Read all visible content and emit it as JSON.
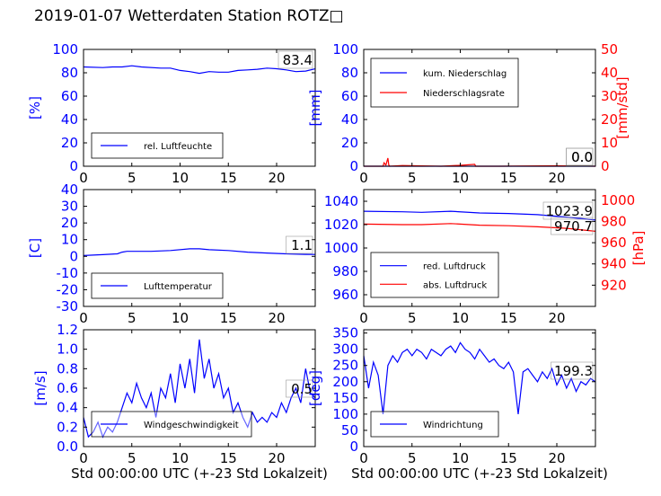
{
  "header": {
    "title": "2019-01-07 Wetterdaten Station ROTZ□"
  },
  "colors": {
    "blue": "#0000ff",
    "red": "#ff0000",
    "black": "#000000"
  },
  "chart_data": [
    {
      "id": "humidity",
      "type": "line",
      "ylabel": "[%]",
      "ylim": [
        0,
        100
      ],
      "yticks": [
        0,
        20,
        40,
        60,
        80,
        100
      ],
      "xlim": [
        0,
        24
      ],
      "xticks": [
        0,
        5,
        10,
        15,
        20
      ],
      "legend_position": "lower-left",
      "last_value": "83.4",
      "series": [
        {
          "name": "rel. Luftfeuchte",
          "color": "#0000ff",
          "axis": "left",
          "x": [
            0,
            2,
            3,
            4,
            5,
            6,
            8,
            9,
            10,
            11,
            12,
            13,
            14,
            15,
            16,
            17,
            18,
            19,
            20,
            21,
            22,
            23,
            24
          ],
          "y": [
            85,
            84.5,
            85,
            85,
            86,
            85,
            84,
            84,
            82,
            81,
            79.5,
            81,
            80.5,
            80.5,
            82,
            82.5,
            83,
            84,
            83.5,
            82.5,
            81,
            81.5,
            83.4
          ]
        }
      ]
    },
    {
      "id": "precip",
      "type": "line",
      "ylabel": "[mm]",
      "ylim": [
        0,
        100
      ],
      "yticks": [
        0,
        20,
        40,
        60,
        80,
        100
      ],
      "y2label": "[mm/std]",
      "y2lim": [
        0,
        50
      ],
      "y2ticks": [
        0,
        10,
        20,
        30,
        40,
        50
      ],
      "xlim": [
        0,
        24
      ],
      "xticks": [
        0,
        5,
        10,
        15,
        20
      ],
      "legend_position": "upper-left",
      "last_value": "0.0",
      "last_value2": "0.0",
      "series": [
        {
          "name": "kum. Niederschlag",
          "color": "#0000ff",
          "axis": "left",
          "x": [
            0,
            24
          ],
          "y": [
            0,
            0
          ]
        },
        {
          "name": "Niederschlagsrate",
          "color": "#ff0000",
          "axis": "right",
          "x": [
            0,
            2.0,
            2.1,
            2.3,
            2.5,
            2.6,
            2.7,
            4,
            8,
            10,
            11.5,
            11.6,
            14,
            20,
            24
          ],
          "y": [
            0,
            0,
            1.5,
            0.5,
            3.5,
            0.5,
            0,
            0.3,
            0,
            0.4,
            0.8,
            0,
            0,
            0.2,
            0
          ]
        }
      ]
    },
    {
      "id": "temperature",
      "type": "line",
      "ylabel": "[C]",
      "ylim": [
        -30,
        40
      ],
      "yticks": [
        -30,
        -20,
        -10,
        0,
        10,
        20,
        30,
        40
      ],
      "xlim": [
        0,
        24
      ],
      "xticks": [
        0,
        5,
        10,
        15,
        20
      ],
      "legend_position": "lower-left",
      "last_value": "1.1",
      "series": [
        {
          "name": "Lufttemperatur",
          "color": "#0000ff",
          "axis": "left",
          "x": [
            0,
            2,
            3.5,
            4,
            4.5,
            7,
            9,
            11,
            12,
            13,
            15,
            17,
            19,
            21,
            23,
            24
          ],
          "y": [
            0.5,
            1,
            1.5,
            2.5,
            3,
            3,
            3.5,
            4.5,
            4.5,
            4,
            3.5,
            2.5,
            2,
            1.5,
            1.2,
            1.1
          ]
        }
      ]
    },
    {
      "id": "pressure",
      "type": "line",
      "ylim": [
        950,
        1050
      ],
      "yticks": [
        960,
        980,
        1000,
        1020,
        1040
      ],
      "y2label": "[hPa]",
      "y2lim": [
        900,
        1010
      ],
      "y2ticks": [
        920,
        940,
        960,
        980,
        1000
      ],
      "xlim": [
        0,
        24
      ],
      "xticks": [
        0,
        5,
        10,
        15,
        20
      ],
      "legend_position": "lower-left",
      "last_value": "1023.9",
      "last_value2": "970.7",
      "series": [
        {
          "name": "red. Luftdruck",
          "color": "#0000ff",
          "axis": "left",
          "x": [
            0,
            4,
            6,
            9,
            12,
            15,
            18,
            21,
            24
          ],
          "y": [
            1031.5,
            1031,
            1030.5,
            1031.5,
            1030,
            1029.5,
            1028.5,
            1026.5,
            1023.9
          ]
        },
        {
          "name": "abs. Luftdruck",
          "color": "#ff0000",
          "axis": "right",
          "x": [
            0,
            4,
            6,
            9,
            12,
            15,
            18,
            21,
            24
          ],
          "y": [
            977.5,
            977,
            977,
            978,
            976.5,
            976,
            975,
            973.5,
            970.7
          ]
        }
      ]
    },
    {
      "id": "wind_speed",
      "type": "line",
      "ylabel": "[m/s]",
      "ylim": [
        0,
        1.2
      ],
      "yticks": [
        0.0,
        0.2,
        0.4,
        0.6,
        0.8,
        1.0,
        1.2
      ],
      "xlabel": "Std 00:00:00 UTC (+-23 Std Lokalzeit)",
      "xlim": [
        0,
        24
      ],
      "xticks": [
        0,
        5,
        10,
        15,
        20
      ],
      "legend_position": "lower-left",
      "last_value": "0.5",
      "series": [
        {
          "name": "Windgeschwindigkeit",
          "color": "#0000ff",
          "axis": "left",
          "x": [
            0,
            0.5,
            1,
            1.5,
            2,
            2.5,
            3,
            3.5,
            4,
            4.5,
            5,
            5.5,
            6,
            6.5,
            7,
            7.5,
            8,
            8.5,
            9,
            9.5,
            10,
            10.5,
            11,
            11.5,
            12,
            12.5,
            13,
            13.5,
            14,
            14.5,
            15,
            15.5,
            16,
            16.5,
            17,
            17.5,
            18,
            18.5,
            19,
            19.5,
            20,
            20.5,
            21,
            21.5,
            22,
            22.5,
            23,
            23.5,
            24
          ],
          "y": [
            0.3,
            0.1,
            0.15,
            0.25,
            0.1,
            0.2,
            0.15,
            0.25,
            0.4,
            0.55,
            0.45,
            0.65,
            0.5,
            0.4,
            0.55,
            0.3,
            0.6,
            0.5,
            0.75,
            0.45,
            0.85,
            0.6,
            0.9,
            0.55,
            1.1,
            0.7,
            0.9,
            0.6,
            0.75,
            0.5,
            0.6,
            0.35,
            0.45,
            0.3,
            0.2,
            0.35,
            0.25,
            0.3,
            0.25,
            0.35,
            0.3,
            0.45,
            0.35,
            0.5,
            0.6,
            0.45,
            0.8,
            0.55,
            0.5
          ]
        }
      ]
    },
    {
      "id": "wind_dir",
      "type": "line",
      "ylabel": "[deg]",
      "ylim": [
        0,
        360
      ],
      "yticks": [
        0,
        50,
        100,
        150,
        200,
        250,
        300,
        350
      ],
      "xlabel": "Std 00:00:00 UTC (+-23 Std Lokalzeit)",
      "xlim": [
        0,
        24
      ],
      "xticks": [
        0,
        5,
        10,
        15,
        20
      ],
      "legend_position": "lower-left",
      "last_value": "199.3",
      "series": [
        {
          "name": "Windrichtung",
          "color": "#0000ff",
          "axis": "left",
          "x": [
            0,
            0.5,
            1,
            1.5,
            2,
            2.5,
            3,
            3.5,
            4,
            4.5,
            5,
            5.5,
            6,
            6.5,
            7,
            7.5,
            8,
            8.5,
            9,
            9.5,
            10,
            10.5,
            11,
            11.5,
            12,
            12.5,
            13,
            13.5,
            14,
            14.5,
            15,
            15.5,
            16,
            16.5,
            17,
            17.5,
            18,
            18.5,
            19,
            19.5,
            20,
            20.5,
            21,
            21.5,
            22,
            22.5,
            23,
            23.5,
            24
          ],
          "y": [
            280,
            180,
            260,
            220,
            100,
            250,
            280,
            260,
            290,
            300,
            280,
            300,
            290,
            270,
            300,
            290,
            280,
            300,
            310,
            290,
            320,
            300,
            290,
            270,
            300,
            280,
            260,
            270,
            250,
            240,
            260,
            230,
            100,
            230,
            240,
            220,
            200,
            230,
            210,
            240,
            190,
            220,
            180,
            210,
            170,
            200,
            190,
            210,
            199.3
          ]
        }
      ]
    }
  ]
}
